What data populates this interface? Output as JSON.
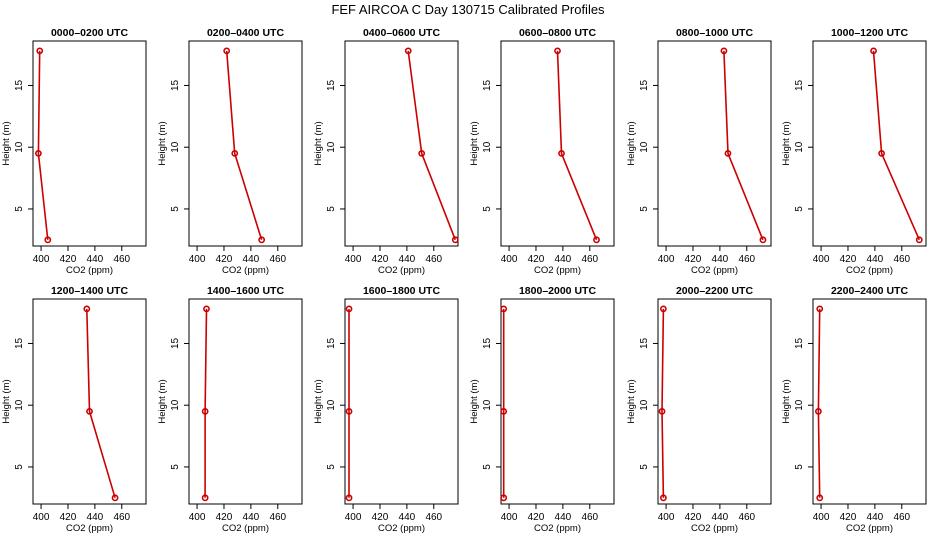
{
  "figure": {
    "title": "FEF AIRCOA C  Day 130715  Calibrated Profiles",
    "line_color": "#cc0000",
    "marker_color": "#cc0000"
  },
  "chart_data": [
    {
      "type": "line",
      "title": "0000–0200 UTC",
      "xlabel": "CO2 (ppm)",
      "ylabel": "Height (m)",
      "x": [
        405,
        398,
        399
      ],
      "y": [
        2.5,
        9.5,
        17.8
      ],
      "xlim": [
        394,
        478
      ],
      "ylim": [
        2,
        18.6
      ],
      "xticks": [
        "400",
        "420",
        "440",
        "460"
      ],
      "yticks": [
        "5",
        "10",
        "15"
      ]
    },
    {
      "type": "line",
      "title": "0200–0400 UTC",
      "xlabel": "CO2 (ppm)",
      "ylabel": "Height (m)",
      "x": [
        448,
        428,
        422
      ],
      "y": [
        2.5,
        9.5,
        17.8
      ],
      "xlim": [
        394,
        478
      ],
      "ylim": [
        2,
        18.6
      ],
      "xticks": [
        "400",
        "420",
        "440",
        "460"
      ],
      "yticks": [
        "5",
        "10",
        "15"
      ]
    },
    {
      "type": "line",
      "title": "0400–0600 UTC",
      "xlabel": "CO2 (ppm)",
      "ylabel": "Height (m)",
      "x": [
        476,
        451,
        441
      ],
      "y": [
        2.5,
        9.5,
        17.8
      ],
      "xlim": [
        394,
        478
      ],
      "ylim": [
        2,
        18.6
      ],
      "xticks": [
        "400",
        "420",
        "440",
        "460"
      ],
      "yticks": [
        "5",
        "10",
        "15"
      ]
    },
    {
      "type": "line",
      "title": "0600–0800 UTC",
      "xlabel": "CO2 (ppm)",
      "ylabel": "Height (m)",
      "x": [
        465,
        439,
        436
      ],
      "y": [
        2.5,
        9.5,
        17.8
      ],
      "xlim": [
        394,
        478
      ],
      "ylim": [
        2,
        18.6
      ],
      "xticks": [
        "400",
        "420",
        "440",
        "460"
      ],
      "yticks": [
        "5",
        "10",
        "15"
      ]
    },
    {
      "type": "line",
      "title": "0800–1000 UTC",
      "xlabel": "CO2 (ppm)",
      "ylabel": "Height (m)",
      "x": [
        472,
        446,
        443
      ],
      "y": [
        2.5,
        9.5,
        17.8
      ],
      "xlim": [
        394,
        478
      ],
      "ylim": [
        2,
        18.6
      ],
      "xticks": [
        "400",
        "420",
        "440",
        "460"
      ],
      "yticks": [
        "5",
        "10",
        "15"
      ]
    },
    {
      "type": "line",
      "title": "1000–1200 UTC",
      "xlabel": "CO2 (ppm)",
      "ylabel": "Height (m)",
      "x": [
        473,
        445,
        439
      ],
      "y": [
        2.5,
        9.5,
        17.8
      ],
      "xlim": [
        394,
        478
      ],
      "ylim": [
        2,
        18.6
      ],
      "xticks": [
        "400",
        "420",
        "440",
        "460"
      ],
      "yticks": [
        "5",
        "10",
        "15"
      ]
    },
    {
      "type": "line",
      "title": "1200–1400 UTC",
      "xlabel": "CO2 (ppm)",
      "ylabel": "Height (m)",
      "x": [
        455,
        436,
        434
      ],
      "y": [
        2.5,
        9.5,
        17.8
      ],
      "xlim": [
        394,
        478
      ],
      "ylim": [
        2,
        18.6
      ],
      "xticks": [
        "400",
        "420",
        "440",
        "460"
      ],
      "yticks": [
        "5",
        "10",
        "15"
      ]
    },
    {
      "type": "line",
      "title": "1400–1600 UTC",
      "xlabel": "CO2 (ppm)",
      "ylabel": "Height (m)",
      "x": [
        406,
        406,
        407
      ],
      "y": [
        2.5,
        9.5,
        17.8
      ],
      "xlim": [
        394,
        478
      ],
      "ylim": [
        2,
        18.6
      ],
      "xticks": [
        "400",
        "420",
        "440",
        "460"
      ],
      "yticks": [
        "5",
        "10",
        "15"
      ]
    },
    {
      "type": "line",
      "title": "1600–1800 UTC",
      "xlabel": "CO2 (ppm)",
      "ylabel": "Height (m)",
      "x": [
        397,
        397,
        397
      ],
      "y": [
        2.5,
        9.5,
        17.8
      ],
      "xlim": [
        394,
        478
      ],
      "ylim": [
        2,
        18.6
      ],
      "xticks": [
        "400",
        "420",
        "440",
        "460"
      ],
      "yticks": [
        "5",
        "10",
        "15"
      ]
    },
    {
      "type": "line",
      "title": "1800–2000 UTC",
      "xlabel": "CO2 (ppm)",
      "ylabel": "Height (m)",
      "x": [
        396,
        396,
        396
      ],
      "y": [
        2.5,
        9.5,
        17.8
      ],
      "xlim": [
        394,
        478
      ],
      "ylim": [
        2,
        18.6
      ],
      "xticks": [
        "400",
        "420",
        "440",
        "460"
      ],
      "yticks": [
        "5",
        "10",
        "15"
      ]
    },
    {
      "type": "line",
      "title": "2000–2200 UTC",
      "xlabel": "CO2 (ppm)",
      "ylabel": "Height (m)",
      "x": [
        398,
        397,
        398
      ],
      "y": [
        2.5,
        9.5,
        17.8
      ],
      "xlim": [
        394,
        478
      ],
      "ylim": [
        2,
        18.6
      ],
      "xticks": [
        "400",
        "420",
        "440",
        "460"
      ],
      "yticks": [
        "5",
        "10",
        "15"
      ]
    },
    {
      "type": "line",
      "title": "2200–2400 UTC",
      "xlabel": "CO2 (ppm)",
      "ylabel": "Height (m)",
      "x": [
        399,
        398,
        399
      ],
      "y": [
        2.5,
        9.5,
        17.8
      ],
      "xlim": [
        394,
        478
      ],
      "ylim": [
        2,
        18.6
      ],
      "xticks": [
        "400",
        "420",
        "440",
        "460"
      ],
      "yticks": [
        "5",
        "10",
        "15"
      ]
    }
  ]
}
